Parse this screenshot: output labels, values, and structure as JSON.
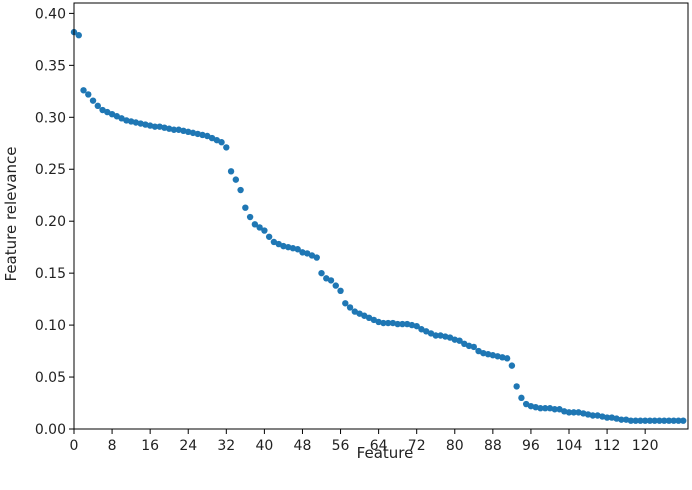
{
  "chart_data": {
    "type": "scatter",
    "title": "",
    "xlabel": "Feature",
    "ylabel": "Feature relevance",
    "xlim": [
      0,
      129
    ],
    "ylim": [
      0,
      0.41
    ],
    "x_ticks": [
      0,
      8,
      16,
      24,
      32,
      40,
      48,
      56,
      64,
      72,
      80,
      88,
      96,
      104,
      112,
      120
    ],
    "x_tick_labels": [
      "0",
      "8",
      "16",
      "24",
      "32",
      "40",
      "48",
      "56",
      "64",
      "72",
      "80",
      "88",
      "96",
      "104",
      "112",
      "120"
    ],
    "y_ticks": [
      0.0,
      0.05,
      0.1,
      0.15,
      0.2,
      0.25,
      0.3,
      0.35,
      0.4
    ],
    "y_tick_labels": [
      "0.00",
      "0.05",
      "0.10",
      "0.15",
      "0.20",
      "0.25",
      "0.30",
      "0.35",
      "0.40"
    ],
    "grid": false,
    "marker_color": "#1f77b4",
    "series": [
      {
        "x": [
          0,
          1,
          2,
          3,
          4,
          5,
          6,
          7,
          8,
          9,
          10,
          11,
          12,
          13,
          14,
          15,
          16,
          17,
          18,
          19,
          20,
          21,
          22,
          23,
          24,
          25,
          26,
          27,
          28,
          29,
          30,
          31,
          32,
          33,
          34,
          35,
          36,
          37,
          38,
          39,
          40,
          41,
          42,
          43,
          44,
          45,
          46,
          47,
          48,
          49,
          50,
          51,
          52,
          53,
          54,
          55,
          56,
          57,
          58,
          59,
          60,
          61,
          62,
          63,
          64,
          65,
          66,
          67,
          68,
          69,
          70,
          71,
          72,
          73,
          74,
          75,
          76,
          77,
          78,
          79,
          80,
          81,
          82,
          83,
          84,
          85,
          86,
          87,
          88,
          89,
          90,
          91,
          92,
          93,
          94,
          95,
          96,
          97,
          98,
          99,
          100,
          101,
          102,
          103,
          104,
          105,
          106,
          107,
          108,
          109,
          110,
          111,
          112,
          113,
          114,
          115,
          116,
          117,
          118,
          119,
          120,
          121,
          122,
          123,
          124,
          125,
          126,
          127,
          128
        ],
        "y": [
          0.382,
          0.379,
          0.326,
          0.322,
          0.316,
          0.311,
          0.307,
          0.305,
          0.303,
          0.301,
          0.299,
          0.297,
          0.296,
          0.295,
          0.294,
          0.293,
          0.292,
          0.291,
          0.291,
          0.29,
          0.289,
          0.288,
          0.288,
          0.287,
          0.286,
          0.285,
          0.284,
          0.283,
          0.282,
          0.28,
          0.278,
          0.276,
          0.271,
          0.248,
          0.24,
          0.23,
          0.213,
          0.204,
          0.197,
          0.194,
          0.191,
          0.185,
          0.18,
          0.178,
          0.176,
          0.175,
          0.174,
          0.173,
          0.17,
          0.169,
          0.167,
          0.165,
          0.15,
          0.145,
          0.143,
          0.138,
          0.133,
          0.121,
          0.117,
          0.113,
          0.111,
          0.109,
          0.107,
          0.105,
          0.103,
          0.102,
          0.102,
          0.102,
          0.101,
          0.101,
          0.101,
          0.1,
          0.099,
          0.096,
          0.094,
          0.092,
          0.09,
          0.09,
          0.089,
          0.088,
          0.086,
          0.085,
          0.082,
          0.08,
          0.079,
          0.075,
          0.073,
          0.072,
          0.071,
          0.07,
          0.069,
          0.068,
          0.061,
          0.041,
          0.03,
          0.024,
          0.022,
          0.021,
          0.02,
          0.02,
          0.02,
          0.019,
          0.019,
          0.017,
          0.016,
          0.016,
          0.016,
          0.015,
          0.014,
          0.013,
          0.013,
          0.012,
          0.011,
          0.011,
          0.01,
          0.009,
          0.009,
          0.008,
          0.008,
          0.008,
          0.008,
          0.008,
          0.008,
          0.008,
          0.008,
          0.008,
          0.008,
          0.008,
          0.008
        ]
      }
    ]
  }
}
